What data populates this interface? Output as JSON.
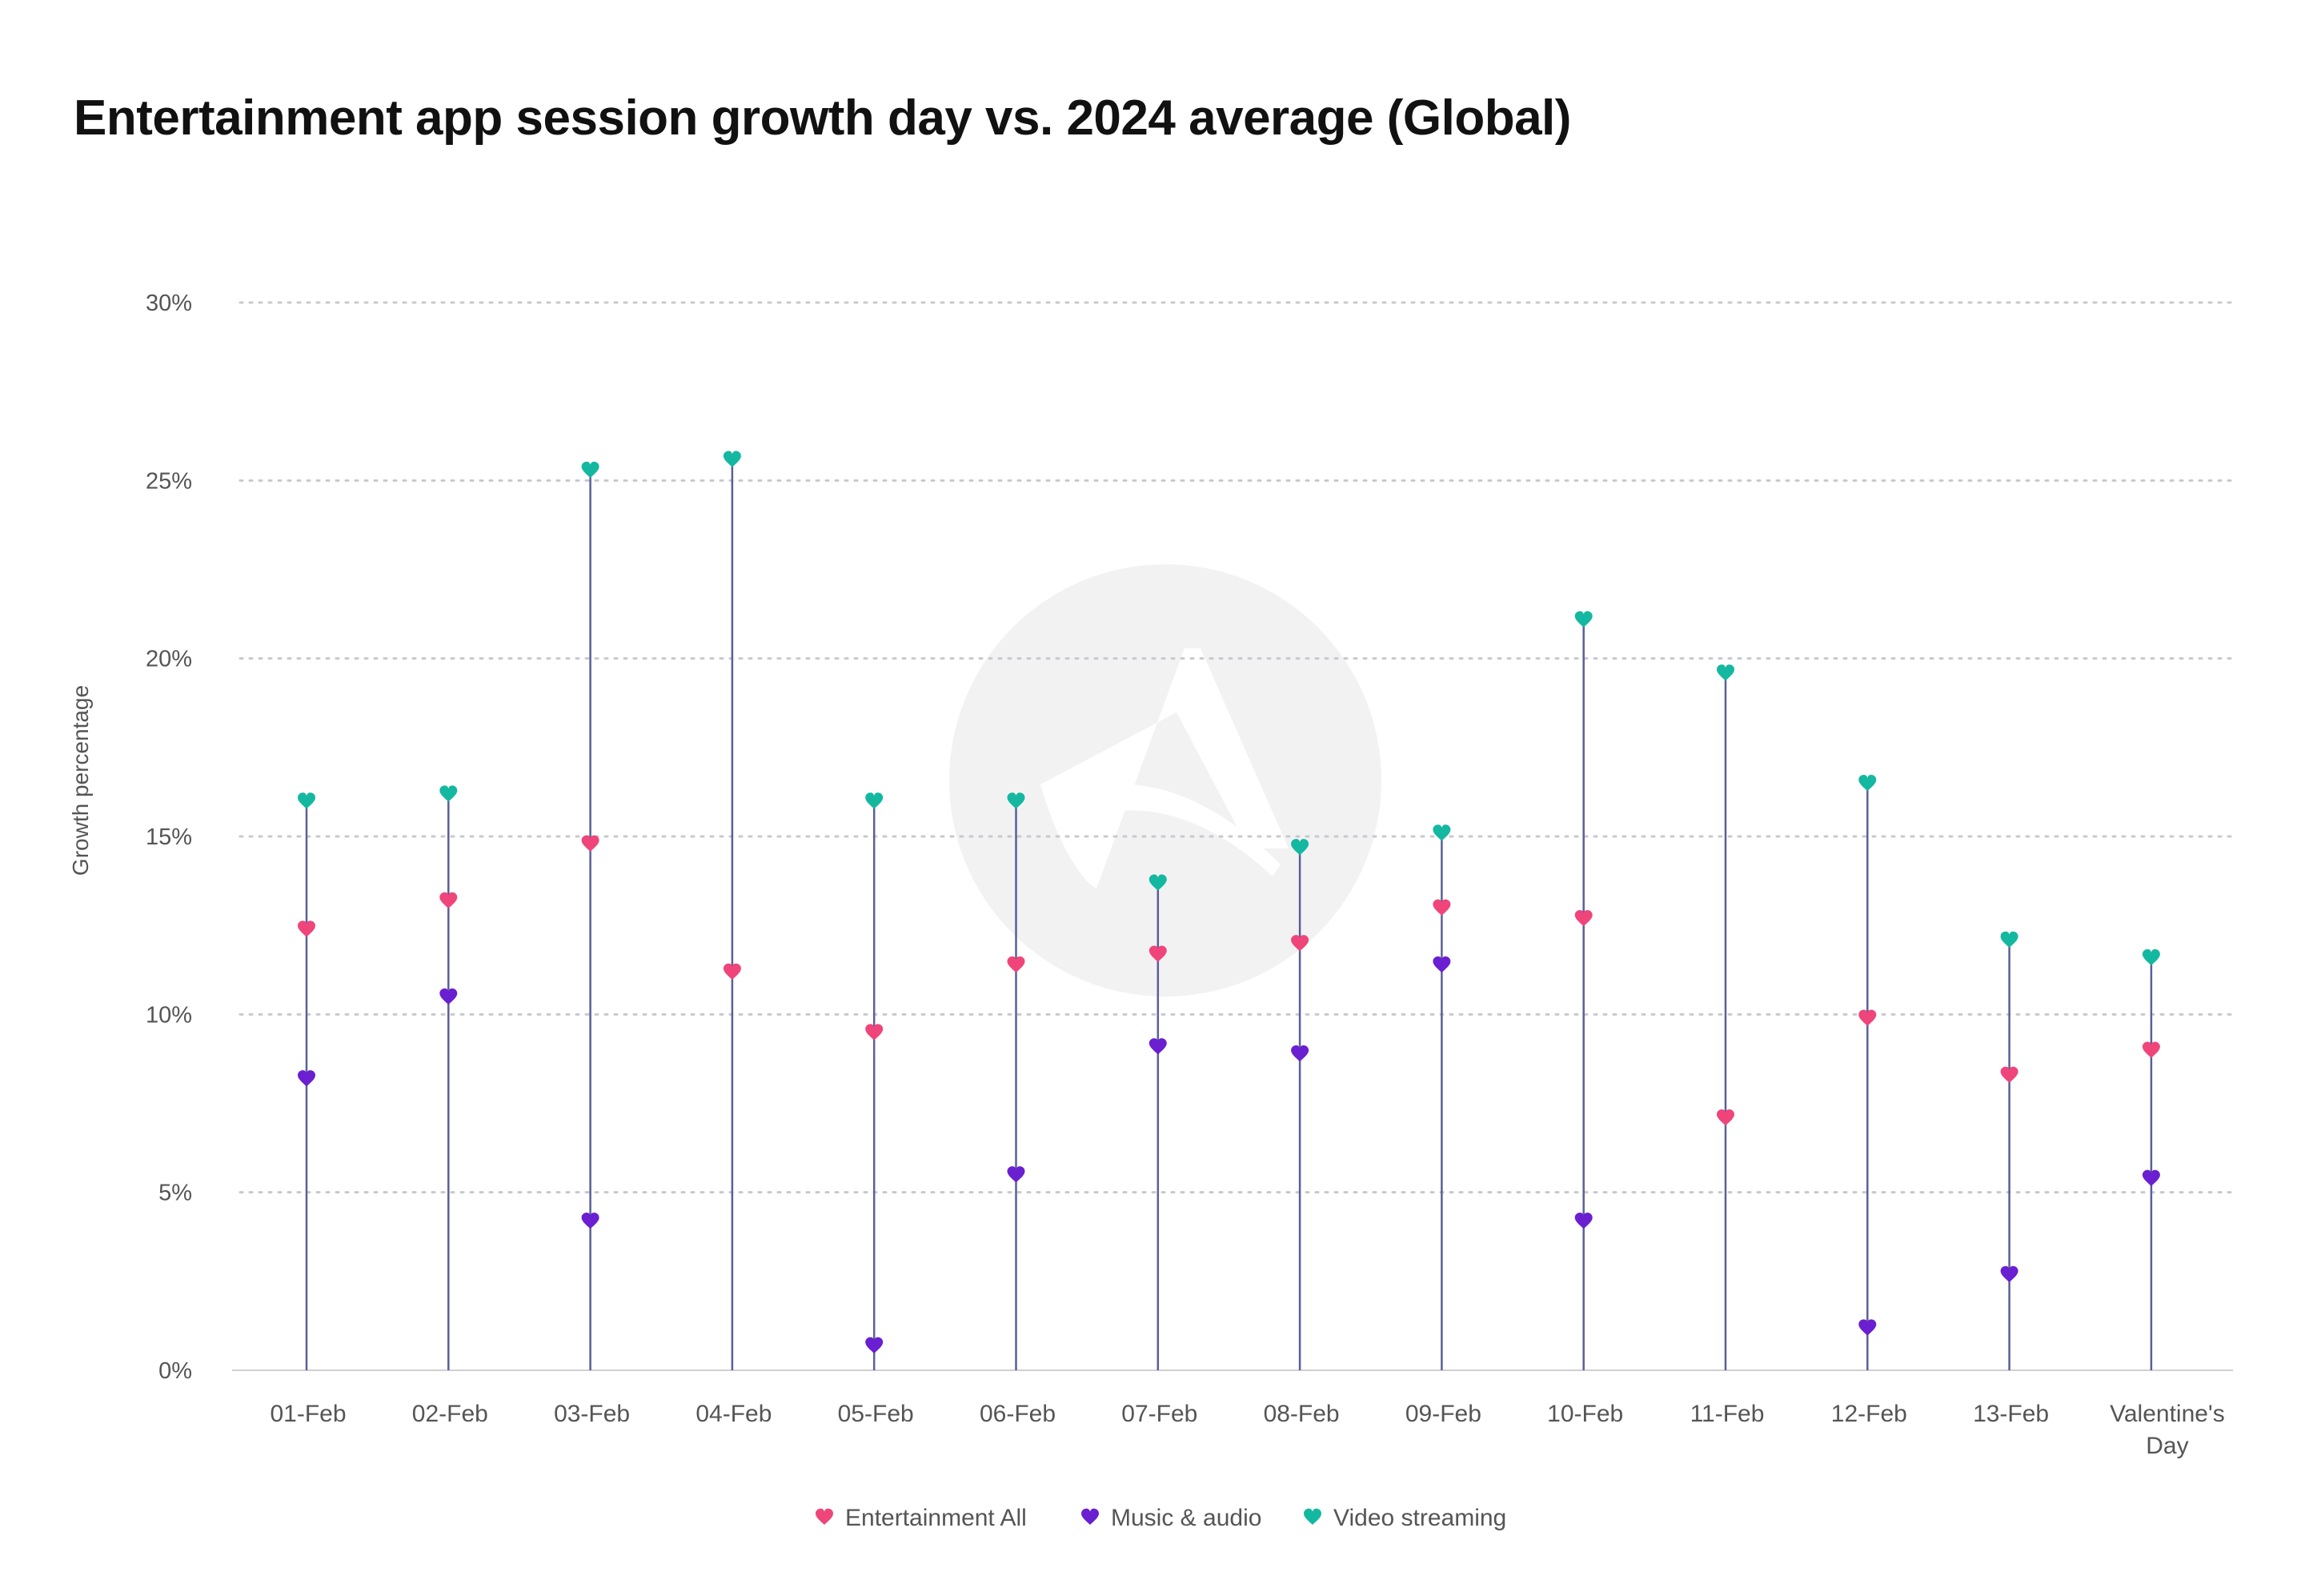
{
  "chart_data": {
    "type": "scatter",
    "title": "Entertainment app session growth day vs. 2024 average (Global)",
    "xlabel": "",
    "ylabel": "Growth percentage",
    "ylim": [
      0,
      30
    ],
    "yticks": [
      0,
      5,
      10,
      15,
      20,
      25,
      30
    ],
    "ytick_labels": [
      "0%",
      "5%",
      "10%",
      "15%",
      "20%",
      "25%",
      "30%"
    ],
    "grid": true,
    "legend_position": "bottom-center",
    "categories": [
      "01-Feb",
      "02-Feb",
      "03-Feb",
      "04-Feb",
      "05-Feb",
      "06-Feb",
      "07-Feb",
      "08-Feb",
      "09-Feb",
      "10-Feb",
      "11-Feb",
      "12-Feb",
      "13-Feb",
      "Valentine's Day"
    ],
    "series": [
      {
        "name": "Entertainment All",
        "color": "#f0457a",
        "values": [
          12.4,
          13.2,
          14.8,
          11.2,
          9.5,
          11.4,
          11.7,
          12.0,
          13.0,
          12.7,
          7.1,
          9.9,
          8.3,
          9.0
        ]
      },
      {
        "name": "Music & audio",
        "color": "#6a1fd1",
        "values": [
          8.2,
          10.5,
          4.2,
          null,
          0.7,
          5.5,
          9.1,
          8.9,
          11.4,
          4.2,
          null,
          1.2,
          2.7,
          5.4
        ]
      },
      {
        "name": "Video streaming",
        "color": "#14b8a0",
        "values": [
          16.0,
          16.2,
          25.3,
          25.6,
          16.0,
          16.0,
          13.7,
          14.7,
          15.1,
          21.1,
          19.6,
          16.5,
          12.1,
          11.6
        ]
      }
    ],
    "stem_color": "#5a5f9a",
    "grid_color": "#c8c8d0"
  }
}
